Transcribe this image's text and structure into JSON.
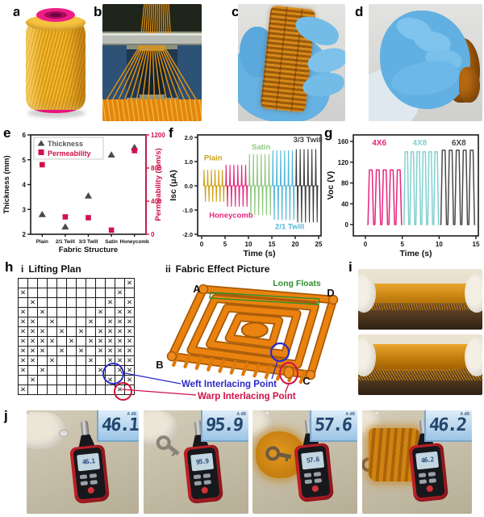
{
  "panel_labels": {
    "a": "a",
    "b": "b",
    "c": "c",
    "d": "d",
    "e": "e",
    "f": "f",
    "g": "g",
    "h": "h",
    "i": "i",
    "j": "j"
  },
  "colors": {
    "accent_orange": "#e07a0c",
    "crimson": "#d0114a",
    "annotation_blue": "#2a2ac8",
    "annotation_green": "#2f8f2f"
  },
  "chart_data": [
    {
      "id": "e",
      "type": "scatter",
      "categories": [
        "Plain",
        "2/1 Twill",
        "3/3 Twill",
        "Satin",
        "Honeycomb"
      ],
      "xlabel": "Fabric Structure",
      "left_axis": {
        "label": "Thickness (mm)",
        "lim": [
          2,
          6
        ],
        "ticks": [
          2,
          3,
          4,
          5,
          6
        ],
        "color": "#1a1a1a"
      },
      "right_axis": {
        "label": "Permeability (mm/s)",
        "lim": [
          0,
          1200
        ],
        "ticks": [
          0,
          400,
          800,
          1200
        ],
        "color": "#d0114a"
      },
      "legend": [
        "Thickness",
        "Permeability"
      ],
      "legend_position": "top-left",
      "series": [
        {
          "name": "Thickness",
          "axis": "left",
          "marker": "triangle",
          "color": "#4a4a4a",
          "values": [
            2.8,
            2.3,
            3.55,
            5.2,
            5.5
          ]
        },
        {
          "name": "Permeability",
          "axis": "right",
          "marker": "square",
          "color": "#d0114a",
          "values": [
            840,
            210,
            200,
            50,
            1010
          ]
        }
      ]
    },
    {
      "id": "f",
      "type": "spike-train",
      "xlabel": "Time (s)",
      "ylabel": "Isc (μA)",
      "xlim": [
        0,
        25
      ],
      "ylim": [
        -2,
        2
      ],
      "xticks": [
        "0",
        "5",
        "10",
        "15",
        "20",
        "25"
      ],
      "yticks": [
        "2.0",
        "1.0",
        "0.0",
        "-1.0",
        "-2.0"
      ],
      "series": [
        {
          "name": "Plain",
          "color": "#cfa21a",
          "t_start": 0.3,
          "t_end": 5,
          "peaks": 6,
          "amplitude": 0.65,
          "amplitude_neg": 0.65,
          "label_pos": [
            0.5,
            1.05
          ]
        },
        {
          "name": "Honeycomb",
          "color": "#e8247d",
          "t_start": 5,
          "t_end": 10,
          "peaks": 6,
          "amplitude": 0.85,
          "amplitude_neg": 0.85,
          "label_pos": [
            1.6,
            -1.32
          ]
        },
        {
          "name": "Satin",
          "color": "#8fc87e",
          "t_start": 10,
          "t_end": 15,
          "peaks": 6,
          "amplitude": 1.3,
          "amplitude_neg": 1.2,
          "label_pos": [
            10.7,
            1.5
          ]
        },
        {
          "name": "2/1 Twill",
          "color": "#57b7da",
          "t_start": 15,
          "t_end": 20,
          "peaks": 6,
          "amplitude": 1.45,
          "amplitude_neg": 1.4,
          "label_pos": [
            15.7,
            -1.78
          ]
        },
        {
          "name": "3/3 Twill",
          "color": "#3d3d3d",
          "t_start": 20,
          "t_end": 25,
          "peaks": 6,
          "amplitude": 1.5,
          "amplitude_neg": 1.5,
          "label_pos": [
            19.6,
            1.8
          ]
        }
      ]
    },
    {
      "id": "g",
      "type": "pulse-train",
      "xlabel": "Time (s)",
      "ylabel": "Voc (V)",
      "xlim": [
        0,
        15
      ],
      "ylim": [
        0,
        160
      ],
      "xticks": [
        "0",
        "5",
        "10",
        "15"
      ],
      "yticks": [
        0,
        40,
        80,
        120,
        160
      ],
      "series": [
        {
          "name": "4X6",
          "color": "#e8247d",
          "t_start": 0.25,
          "t_end": 5.0,
          "peaks": 5,
          "amplitude": 105,
          "label_pos": [
            0.9,
            152
          ]
        },
        {
          "name": "4X8",
          "color": "#82d0d0",
          "t_start": 5.15,
          "t_end": 10.0,
          "peaks": 6,
          "amplitude": 140,
          "label_pos": [
            6.4,
            152
          ]
        },
        {
          "name": "6X8",
          "color": "#4a4a4a",
          "t_start": 10.15,
          "t_end": 14.9,
          "peaks": 5,
          "amplitude": 143,
          "label_pos": [
            11.7,
            152
          ]
        }
      ]
    }
  ],
  "panel_h": {
    "label": "h",
    "lifting_plan": {
      "numeral": "i",
      "title": "Lifting Plan",
      "mark": "✕",
      "grid": [
        "...........X",
        "X.........X.",
        ".X.......X.X",
        "X.X.....X.XX",
        "XX.X...X.XXX",
        "XXX.X.X.XXXX",
        "XXXX.X.XXXXX",
        "XXX.X.X.XXXX",
        "XX.X...X.XXX",
        "X.X.....X.XX",
        ".X.......X.X",
        "X.........X."
      ]
    },
    "fabric_effect": {
      "numeral": "ii",
      "title": "Fabric Effect Picture",
      "corner_a": "A",
      "corner_b": "B",
      "corner_c": "C",
      "corner_d": "D",
      "long_floats_label": "Long Floats",
      "weft_label": "Weft Interlacing Point",
      "warp_label": "Warp Interlacing Point"
    }
  },
  "panel_j": {
    "label": "j",
    "display_unit": "A dB",
    "items": [
      {
        "numeral": "i",
        "reading": "46.1"
      },
      {
        "numeral": "ii",
        "reading": "95.9"
      },
      {
        "numeral": "iii",
        "reading": "57.6"
      },
      {
        "numeral": "iv",
        "reading": "46.2"
      }
    ]
  }
}
